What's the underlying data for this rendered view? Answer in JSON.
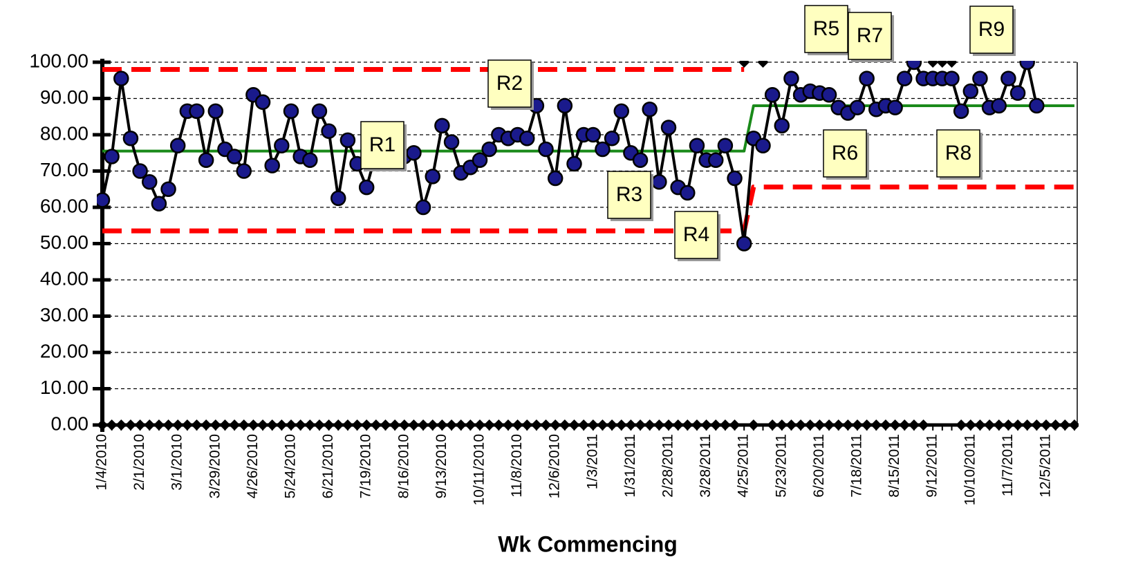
{
  "chart_data": {
    "type": "line",
    "x_label": "Wk Commencing",
    "categories": [
      "1/4/2010",
      null,
      null,
      null,
      "2/1/2010",
      null,
      null,
      null,
      "3/1/2010",
      null,
      null,
      null,
      "3/29/2010",
      null,
      null,
      null,
      "4/26/2010",
      null,
      null,
      null,
      "5/24/2010",
      null,
      null,
      null,
      "6/21/2010",
      null,
      null,
      null,
      "7/19/2010",
      null,
      null,
      null,
      "8/16/2010",
      null,
      null,
      null,
      "9/13/2010",
      null,
      null,
      null,
      "10/11/2010",
      null,
      null,
      null,
      "11/8/2010",
      null,
      null,
      null,
      "12/6/2010",
      null,
      null,
      null,
      "1/3/2011",
      null,
      null,
      null,
      "1/31/2011",
      null,
      null,
      null,
      "2/28/2011",
      null,
      null,
      null,
      "3/28/2011",
      null,
      null,
      null,
      "4/25/2011",
      null,
      null,
      null,
      "5/23/2011",
      null,
      null,
      null,
      "6/20/2011",
      null,
      null,
      null,
      "7/18/2011",
      null,
      null,
      null,
      "8/15/2011",
      null,
      null,
      null,
      "9/12/2011",
      null,
      null,
      null,
      "10/10/2011",
      null,
      null,
      null,
      "11/7/2011",
      null,
      null,
      null,
      "12/5/2011",
      null,
      null,
      null
    ],
    "ylim": [
      0,
      100
    ],
    "yticks": [
      {
        "value": 0,
        "label": "0.00"
      },
      {
        "value": 10,
        "label": "10.00"
      },
      {
        "value": 20,
        "label": "20.00"
      },
      {
        "value": 30,
        "label": "30.00"
      },
      {
        "value": 40,
        "label": "40.00"
      },
      {
        "value": 50,
        "label": "50.00"
      },
      {
        "value": 60,
        "label": "60.00"
      },
      {
        "value": 70,
        "label": "70.00"
      },
      {
        "value": 80,
        "label": "80.00"
      },
      {
        "value": 90,
        "label": "90.00"
      },
      {
        "value": 100,
        "label": "100.00"
      }
    ],
    "grid": true,
    "series": [
      {
        "color": "#000000",
        "marker_color": "#1a1a8c",
        "style": "markers",
        "values": [
          62,
          74,
          95.5,
          79,
          70,
          67,
          61,
          65,
          77,
          86.5,
          86.5,
          73,
          86.5,
          76,
          74,
          70,
          91,
          89,
          71.5,
          77,
          86.5,
          74,
          73,
          86.5,
          81,
          62.5,
          78.5,
          72,
          65.5,
          75,
          76,
          74,
          74,
          75,
          60,
          68.5,
          82.5,
          78,
          69.5,
          71,
          73,
          76,
          80,
          79,
          80,
          79,
          88,
          76,
          68,
          88,
          72,
          80,
          80,
          76,
          79,
          86.5,
          75,
          73,
          87,
          67,
          82,
          65.5,
          64,
          77,
          73,
          73,
          77,
          68,
          50,
          79,
          77,
          91,
          82.5,
          95.5,
          91,
          92,
          91.5,
          91,
          87.5,
          86,
          87.5,
          95.5,
          87,
          88,
          87.5,
          95.5,
          100,
          95.5,
          95.5,
          95.5,
          95.5,
          86.5,
          92,
          95.5,
          87.5,
          88,
          95.5,
          91.5,
          100,
          88,
          null,
          null,
          null,
          null
        ]
      },
      {
        "color": "#1a8a1a",
        "style": "solid",
        "values": [
          75.5,
          75.5,
          75.5,
          75.5,
          75.5,
          75.5,
          75.5,
          75.5,
          75.5,
          75.5,
          75.5,
          75.5,
          75.5,
          75.5,
          75.5,
          75.5,
          75.5,
          75.5,
          75.5,
          75.5,
          75.5,
          75.5,
          75.5,
          75.5,
          75.5,
          75.5,
          75.5,
          75.5,
          75.5,
          75.5,
          75.5,
          75.5,
          75.5,
          75.5,
          75.5,
          75.5,
          75.5,
          75.5,
          75.5,
          75.5,
          75.5,
          75.5,
          75.5,
          75.5,
          75.5,
          75.5,
          75.5,
          75.5,
          75.5,
          75.5,
          75.5,
          75.5,
          75.5,
          75.5,
          75.5,
          75.5,
          75.5,
          75.5,
          75.5,
          75.5,
          75.5,
          75.5,
          75.5,
          75.5,
          75.5,
          75.5,
          75.5,
          75.5,
          75.5,
          88,
          88,
          88,
          88,
          88,
          88,
          88,
          88,
          88,
          88,
          88,
          88,
          88,
          88,
          88,
          88,
          88,
          88,
          88,
          88,
          88,
          88,
          88,
          88,
          88,
          88,
          88,
          88,
          88,
          88,
          88,
          88,
          88,
          88,
          88
        ]
      },
      {
        "color": "#ff0000",
        "style": "dashed",
        "values": [
          98,
          98,
          98,
          98,
          98,
          98,
          98,
          98,
          98,
          98,
          98,
          98,
          98,
          98,
          98,
          98,
          98,
          98,
          98,
          98,
          98,
          98,
          98,
          98,
          98,
          98,
          98,
          98,
          98,
          98,
          98,
          98,
          98,
          98,
          98,
          98,
          98,
          98,
          98,
          98,
          98,
          98,
          98,
          98,
          98,
          98,
          98,
          98,
          98,
          98,
          98,
          98,
          98,
          98,
          98,
          98,
          98,
          98,
          98,
          98,
          98,
          98,
          98,
          98,
          98,
          98,
          98,
          98,
          98,
          null,
          null,
          null,
          null,
          null,
          null,
          null,
          null,
          null,
          null,
          null,
          null,
          null,
          null,
          null,
          null,
          null,
          null,
          null,
          null,
          null,
          null,
          null,
          null,
          null,
          null,
          null,
          null,
          null,
          null,
          null,
          null,
          null,
          null,
          null
        ]
      },
      {
        "color": "#ff0000",
        "style": "dashed",
        "values": [
          53.5,
          53.5,
          53.5,
          53.5,
          53.5,
          53.5,
          53.5,
          53.5,
          53.5,
          53.5,
          53.5,
          53.5,
          53.5,
          53.5,
          53.5,
          53.5,
          53.5,
          53.5,
          53.5,
          53.5,
          53.5,
          53.5,
          53.5,
          53.5,
          53.5,
          53.5,
          53.5,
          53.5,
          53.5,
          53.5,
          53.5,
          53.5,
          53.5,
          53.5,
          53.5,
          53.5,
          53.5,
          53.5,
          53.5,
          53.5,
          53.5,
          53.5,
          53.5,
          53.5,
          53.5,
          53.5,
          53.5,
          53.5,
          53.5,
          53.5,
          53.5,
          53.5,
          53.5,
          53.5,
          53.5,
          53.5,
          53.5,
          53.5,
          53.5,
          53.5,
          53.5,
          53.5,
          53.5,
          53.5,
          53.5,
          53.5,
          53.5,
          53.5,
          53.5,
          65.6,
          65.6,
          65.6,
          65.6,
          65.6,
          65.6,
          65.6,
          65.6,
          65.6,
          65.6,
          65.6,
          65.6,
          65.6,
          65.6,
          65.6,
          65.6,
          65.6,
          65.6,
          65.6,
          65.6,
          65.6,
          65.6,
          65.6,
          65.6,
          65.6,
          65.6,
          65.6,
          65.6,
          65.6,
          65.6,
          65.6,
          65.6,
          65.6,
          65.6,
          65.6
        ]
      },
      {
        "color": "#000000",
        "style": "diamonds",
        "values": [
          0,
          0,
          0,
          0,
          0,
          0,
          0,
          0,
          0,
          0,
          0,
          0,
          0,
          0,
          0,
          0,
          0,
          0,
          0,
          0,
          0,
          0,
          0,
          0,
          0,
          0,
          0,
          0,
          0,
          0,
          0,
          0,
          0,
          0,
          0,
          0,
          0,
          0,
          0,
          0,
          0,
          0,
          0,
          0,
          0,
          0,
          0,
          0,
          0,
          0,
          0,
          0,
          0,
          0,
          0,
          0,
          0,
          0,
          0,
          0,
          0,
          0,
          0,
          0,
          0,
          0,
          0,
          0,
          100,
          0,
          100,
          0,
          0,
          0,
          0,
          0,
          0,
          0,
          0,
          0,
          0,
          0,
          0,
          0,
          0,
          0,
          0,
          0,
          100,
          100,
          100,
          0,
          0,
          0,
          0,
          0,
          0,
          0,
          0,
          0,
          0,
          0,
          0,
          0
        ]
      }
    ],
    "annotations": [
      "R1",
      "R2",
      "R3",
      "R4",
      "R5",
      "R6",
      "R7",
      "R8",
      "R9"
    ]
  }
}
